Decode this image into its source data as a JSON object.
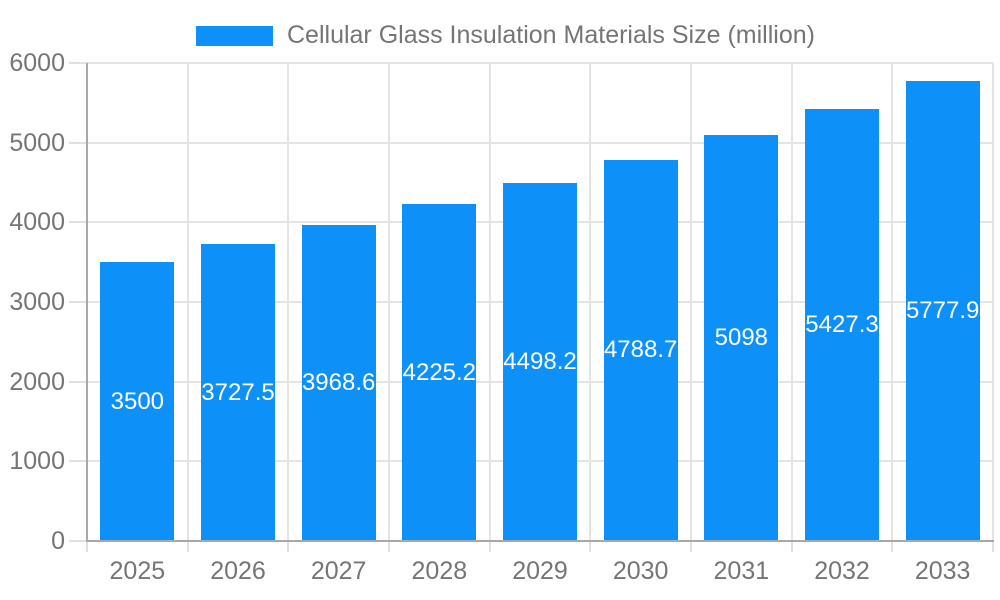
{
  "chart_data": {
    "type": "bar",
    "title": "Cellular Glass Insulation Materials Size (million)",
    "categories": [
      "2025",
      "2026",
      "2027",
      "2028",
      "2029",
      "2030",
      "2031",
      "2032",
      "2033"
    ],
    "values": [
      3500,
      3727.5,
      3968.6,
      4225.2,
      4498.2,
      4788.7,
      5098,
      5427.3,
      5777.9
    ],
    "series_name": "Cellular Glass Insulation Materials Size (million)",
    "xlabel": "",
    "ylabel": "",
    "ylim": [
      0,
      6000
    ],
    "yticks": [
      0,
      1000,
      2000,
      3000,
      4000,
      5000,
      6000
    ],
    "legend_position": "top",
    "grid": true,
    "bar_color": "#0e90f9",
    "axis_color": "#a8a8a8",
    "grid_color": "#e4e4e4",
    "label_color": "#757575",
    "bar_label_color": "#ffffff"
  }
}
